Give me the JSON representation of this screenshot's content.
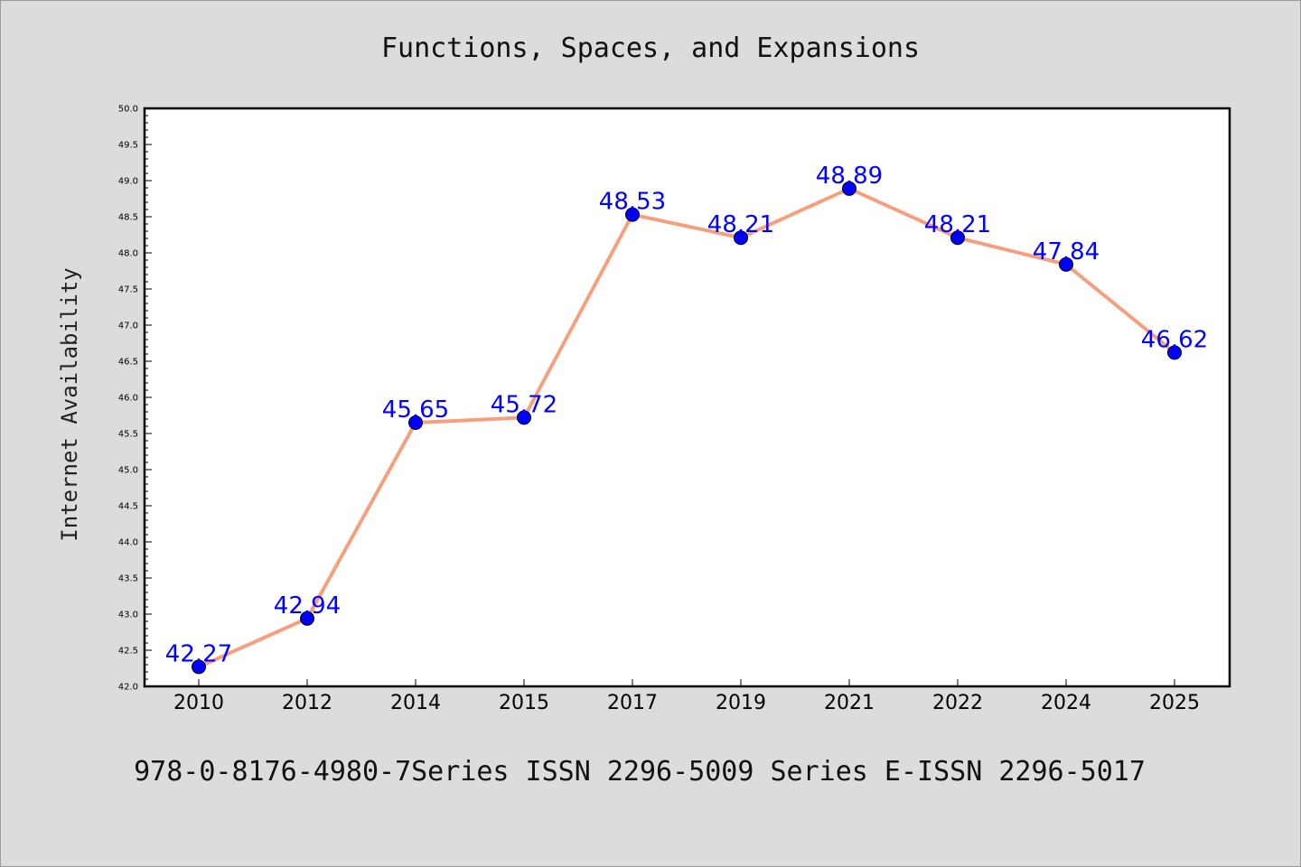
{
  "chart_data": {
    "type": "line",
    "title": "Functions, Spaces, and Expansions",
    "xlabel": "",
    "ylabel": "Internet Availability",
    "categories": [
      "2010",
      "2012",
      "2014",
      "2015",
      "2017",
      "2019",
      "2021",
      "2022",
      "2024",
      "2025"
    ],
    "series": [
      {
        "values": [
          42.27,
          42.94,
          45.65,
          45.72,
          48.53,
          48.21,
          48.89,
          48.21,
          47.84,
          46.62
        ],
        "labels": [
          "42.27",
          "42.94",
          "45.65",
          "45.72",
          "48.53",
          "48.21",
          "48.89",
          "48.21",
          "47.84",
          "46.62"
        ]
      }
    ],
    "ylim": [
      42.0,
      50.0
    ],
    "yticks": [
      "42.0",
      "42.5",
      "43.0",
      "43.5",
      "44.0",
      "44.5",
      "45.0",
      "45.5",
      "46.0",
      "46.5",
      "47.0",
      "47.5",
      "48.0",
      "48.5",
      "49.0",
      "49.5",
      "50.0"
    ],
    "grid": false,
    "colors": {
      "line": "#f4a07e",
      "marker": "#0000ff",
      "data_label": "#0000ff",
      "plot_background": "#ffffff",
      "page_background": "#dcdcdc"
    }
  },
  "footer": {
    "text": "978-0-8176-4980-7Series ISSN 2296-5009 Series E-ISSN 2296-5017"
  }
}
